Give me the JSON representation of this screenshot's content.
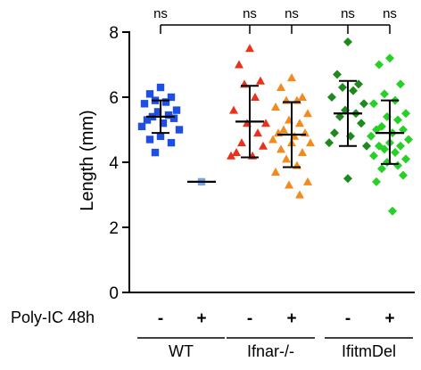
{
  "chart_data": {
    "type": "scatter",
    "ylabel": "Length (mm)",
    "ylim": [
      0,
      8
    ],
    "yticks": [
      "0",
      "2",
      "4",
      "6",
      "8"
    ],
    "grid": false,
    "condition_label": "Poly-IC 48h",
    "significance_label": "ns",
    "columns": [
      {
        "group": "WT",
        "treatment": "-",
        "sig": "ns",
        "marker": "square",
        "color": "#1f4fe0",
        "mean": 5.4,
        "sd_low": 4.9,
        "sd_high": 5.9,
        "values": [
          6.3,
          6.1,
          6.0,
          5.9,
          5.85,
          5.8,
          5.6,
          5.55,
          5.45,
          5.4,
          5.35,
          5.3,
          5.2,
          5.1,
          5.0,
          4.8,
          4.7,
          4.6,
          4.3
        ]
      },
      {
        "group": "WT",
        "treatment": "+",
        "sig": "",
        "marker": "square",
        "color": "#6fa8e8",
        "mean": 3.4,
        "sd_low": null,
        "sd_high": null,
        "values": [
          3.4
        ]
      },
      {
        "group": "Ifnar-/-",
        "treatment": "-",
        "sig": "ns",
        "marker": "triangle",
        "color": "#e8321c",
        "mean": 5.25,
        "sd_low": 4.15,
        "sd_high": 6.35,
        "values": [
          7.5,
          7.0,
          6.5,
          6.4,
          6.0,
          5.6,
          5.2,
          5.2,
          4.9,
          4.6,
          4.5,
          4.3,
          4.2,
          4.2
        ]
      },
      {
        "group": "Ifnar-/-",
        "treatment": "+",
        "sig": "ns",
        "marker": "triangle",
        "color": "#f28a1e",
        "mean": 4.85,
        "sd_low": 3.85,
        "sd_high": 5.85,
        "values": [
          6.6,
          6.3,
          6.0,
          5.9,
          5.9,
          5.7,
          5.5,
          5.3,
          5.2,
          5.0,
          4.9,
          4.9,
          4.8,
          4.7,
          4.6,
          4.6,
          4.4,
          4.3,
          4.1,
          3.9,
          3.7,
          3.4,
          3.3,
          3.0
        ]
      },
      {
        "group": "IfitmDel",
        "treatment": "-",
        "sig": "ns",
        "marker": "diamond",
        "color": "#1e8a1e",
        "mean": 5.5,
        "sd_low": 4.5,
        "sd_high": 6.5,
        "values": [
          7.7,
          6.7,
          6.4,
          6.3,
          6.2,
          6.0,
          5.8,
          5.6,
          5.5,
          5.4,
          5.2,
          4.9,
          4.8,
          4.6,
          4.5,
          3.5
        ]
      },
      {
        "group": "IfitmDel",
        "treatment": "+",
        "sig": "ns",
        "marker": "diamond",
        "color": "#27d027",
        "mean": 4.9,
        "sd_low": 3.95,
        "sd_high": 5.9,
        "values": [
          7.2,
          7.0,
          6.4,
          6.1,
          5.9,
          5.8,
          5.5,
          5.4,
          5.3,
          5.1,
          5.0,
          5.0,
          4.9,
          4.8,
          4.7,
          4.6,
          4.5,
          4.5,
          4.4,
          4.3,
          4.2,
          4.1,
          4.0,
          3.9,
          3.8,
          3.6,
          3.4,
          2.5
        ]
      }
    ],
    "groups": [
      "WT",
      "Ifnar-/-",
      "IfitmDel"
    ]
  }
}
